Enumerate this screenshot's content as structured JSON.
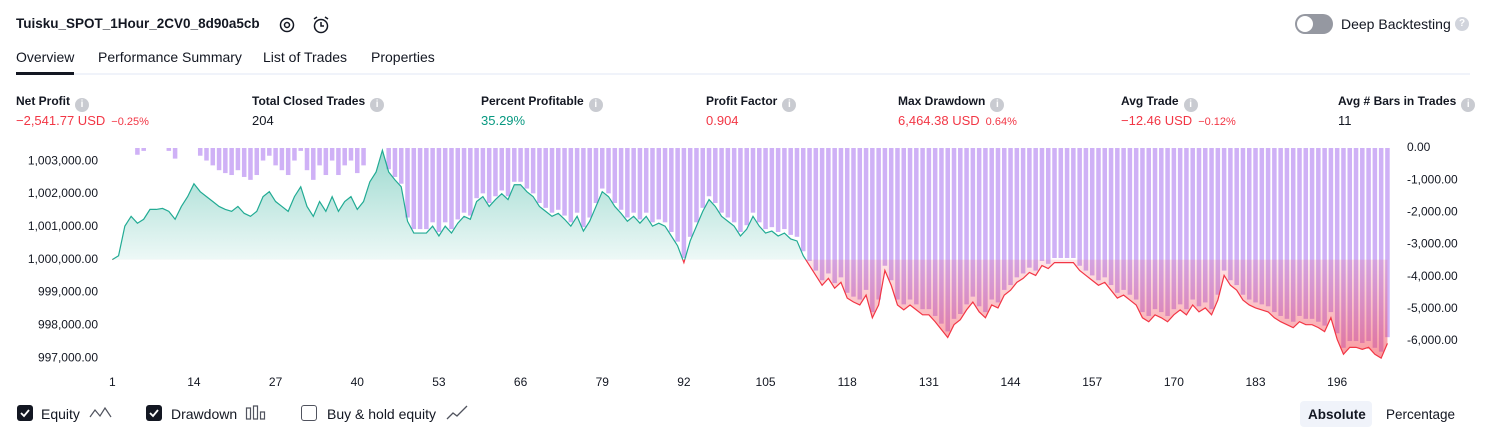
{
  "header": {
    "title": "Tuisku_SPOT_1Hour_2CV0_8d90a5cb",
    "toggle_label": "Deep Backtesting"
  },
  "tabs": [
    "Overview",
    "Performance Summary",
    "List of Trades",
    "Properties"
  ],
  "metrics": [
    {
      "label": "Net Profit",
      "value": "−2,541.77 USD",
      "percent": "−0.25%",
      "color": "#f23645"
    },
    {
      "label": "Total Closed Trades",
      "value": "204",
      "color": "#131722"
    },
    {
      "label": "Percent Profitable",
      "value": "35.29%",
      "color": "#089981"
    },
    {
      "label": "Profit Factor",
      "value": "0.904",
      "color": "#f23645"
    },
    {
      "label": "Max Drawdown",
      "value": "6,464.38 USD",
      "percent": "0.64%",
      "color": "#f23645"
    },
    {
      "label": "Avg Trade",
      "value": "−12.46 USD",
      "percent": "−0.12%",
      "color": "#f23645"
    },
    {
      "label": "Avg # Bars in Trades",
      "value": "11",
      "color": "#131722"
    }
  ],
  "chart_data": {
    "type": "equity",
    "x": [
      1,
      2,
      3,
      4,
      5,
      6,
      7,
      8,
      9,
      10,
      11,
      12,
      13,
      14,
      15,
      16,
      17,
      18,
      19,
      20,
      21,
      22,
      23,
      24,
      25,
      26,
      27,
      28,
      29,
      30,
      31,
      32,
      33,
      34,
      35,
      36,
      37,
      38,
      39,
      40,
      41,
      42,
      43,
      44,
      45,
      46,
      47,
      48,
      49,
      50,
      51,
      52,
      53,
      54,
      55,
      56,
      57,
      58,
      59,
      60,
      61,
      62,
      63,
      64,
      65,
      66,
      67,
      68,
      69,
      70,
      71,
      72,
      73,
      74,
      75,
      76,
      77,
      78,
      79,
      80,
      81,
      82,
      83,
      84,
      85,
      86,
      87,
      88,
      89,
      90,
      91,
      92,
      93,
      94,
      95,
      96,
      97,
      98,
      99,
      100,
      101,
      102,
      103,
      104,
      105,
      106,
      107,
      108,
      109,
      110,
      111,
      112,
      113,
      114,
      115,
      116,
      117,
      118,
      119,
      120,
      121,
      122,
      123,
      124,
      125,
      126,
      127,
      128,
      129,
      130,
      131,
      132,
      133,
      134,
      135,
      136,
      137,
      138,
      139,
      140,
      141,
      142,
      143,
      144,
      145,
      146,
      147,
      148,
      149,
      150,
      151,
      152,
      153,
      154,
      155,
      156,
      157,
      158,
      159,
      160,
      161,
      162,
      163,
      164,
      165,
      166,
      167,
      168,
      169,
      170,
      171,
      172,
      173,
      174,
      175,
      176,
      177,
      178,
      179,
      180,
      181,
      182,
      183,
      184,
      185,
      186,
      187,
      188,
      189,
      190,
      191,
      192,
      193,
      194,
      195,
      196,
      197,
      198,
      199,
      200,
      201,
      202,
      203,
      204
    ],
    "series": [
      {
        "name": "Equity",
        "color": "#22ab94",
        "negative_color": "#f23645",
        "values": [
          1000000,
          1000120,
          1001020,
          1001320,
          1001110,
          1001230,
          1001530,
          1001530,
          1001560,
          1001470,
          1001230,
          1001620,
          1001920,
          1002310,
          1002070,
          1001920,
          1001770,
          1001620,
          1001530,
          1001470,
          1001620,
          1001410,
          1001320,
          1001470,
          1001920,
          1002070,
          1001770,
          1001620,
          1001470,
          1001920,
          1002220,
          1001620,
          1001320,
          1001770,
          1001470,
          1001920,
          1001470,
          1001770,
          1001920,
          1001530,
          1001770,
          1002370,
          1002670,
          1003330,
          1002670,
          1002430,
          1002220,
          1001170,
          1000810,
          1000810,
          1000810,
          1001020,
          1000720,
          1001020,
          1000810,
          1001110,
          1001320,
          1001230,
          1001770,
          1001920,
          1001620,
          1001830,
          1002010,
          1001830,
          1002280,
          1002280,
          1002070,
          1001920,
          1001620,
          1001470,
          1001320,
          1001410,
          1001230,
          1001020,
          1001320,
          1000870,
          1001170,
          1001620,
          1002070,
          1001920,
          1001620,
          1001410,
          1001170,
          1001320,
          1001110,
          1001320,
          1001020,
          1001110,
          1001020,
          1000720,
          1000420,
          999910,
          1000570,
          1001020,
          1001470,
          1001830,
          1001620,
          1001320,
          1001170,
          1001020,
          1000720,
          1000930,
          1001320,
          1001020,
          1000810,
          1000870,
          1000720,
          1000810,
          1000630,
          1000570,
          1000120,
          999820,
          999520,
          999220,
          999430,
          999130,
          999310,
          998830,
          998710,
          998620,
          998920,
          998230,
          998620,
          999670,
          999220,
          998620,
          998470,
          998620,
          998470,
          998320,
          998320,
          998110,
          997870,
          997630,
          998020,
          998170,
          998470,
          998710,
          998410,
          998230,
          998620,
          998530,
          998920,
          999070,
          999310,
          999430,
          999610,
          999520,
          999820,
          999730,
          999910,
          999910,
          999910,
          999910,
          999670,
          999520,
          999370,
          999220,
          999310,
          999070,
          998830,
          998920,
          998770,
          998620,
          998230,
          998110,
          998320,
          998230,
          998110,
          998320,
          998470,
          998320,
          998620,
          998410,
          998530,
          998320,
          998770,
          999520,
          999220,
          999070,
          998770,
          998620,
          998530,
          998470,
          998410,
          998230,
          998110,
          998020,
          997930,
          998110,
          998020,
          998020,
          997930,
          997810,
          998230,
          997570,
          997120,
          997330,
          997330,
          997270,
          997330,
          997120,
          997000,
          997450
        ]
      },
      {
        "name": "Drawdown",
        "color": "#cfb1f6",
        "axis": "y2",
        "values": [
          0,
          0,
          0,
          0,
          -210,
          -90,
          0,
          0,
          0,
          -90,
          -330,
          0,
          0,
          0,
          -240,
          -390,
          -540,
          -690,
          -780,
          -840,
          -690,
          -900,
          -990,
          -840,
          -390,
          -240,
          -540,
          -690,
          -840,
          -390,
          -90,
          -690,
          -990,
          -540,
          -840,
          -390,
          -840,
          -540,
          -390,
          -780,
          -540,
          0,
          0,
          0,
          -660,
          -900,
          -1110,
          -2160,
          -2520,
          -2520,
          -2520,
          -2310,
          -2610,
          -2310,
          -2520,
          -2220,
          -2010,
          -2100,
          -1560,
          -1410,
          -1710,
          -1500,
          -1320,
          -1500,
          -1050,
          -1050,
          -1260,
          -1410,
          -1710,
          -1860,
          -2010,
          -1920,
          -2100,
          -2310,
          -2010,
          -2460,
          -2160,
          -1710,
          -1260,
          -1410,
          -1710,
          -1920,
          -2160,
          -2010,
          -2220,
          -2010,
          -2310,
          -2220,
          -2310,
          -2610,
          -2910,
          -3420,
          -2760,
          -2310,
          -1860,
          -1500,
          -1710,
          -2010,
          -2160,
          -2310,
          -2610,
          -2400,
          -2010,
          -2310,
          -2520,
          -2460,
          -2610,
          -2520,
          -2700,
          -2760,
          -3210,
          -3510,
          -3810,
          -4110,
          -3900,
          -4200,
          -4020,
          -4500,
          -4620,
          -4710,
          -4410,
          -5100,
          -4710,
          -3660,
          -4110,
          -4710,
          -4860,
          -4710,
          -4860,
          -5010,
          -5010,
          -5220,
          -5460,
          -5700,
          -5310,
          -5160,
          -4860,
          -4620,
          -4920,
          -5100,
          -4710,
          -4800,
          -4410,
          -4260,
          -4020,
          -3900,
          -3720,
          -3810,
          -3510,
          -3600,
          -3420,
          -3420,
          -3420,
          -3420,
          -3660,
          -3810,
          -3960,
          -4110,
          -4020,
          -4260,
          -4500,
          -4410,
          -4560,
          -4710,
          -5100,
          -5220,
          -5010,
          -5100,
          -5220,
          -5010,
          -4860,
          -5010,
          -4710,
          -4920,
          -4800,
          -5010,
          -4560,
          -3810,
          -4110,
          -4260,
          -4560,
          -4710,
          -4800,
          -4860,
          -4920,
          -5100,
          -5220,
          -5310,
          -5400,
          -5220,
          -5310,
          -5310,
          -5400,
          -5520,
          -5100,
          -5760,
          -6210,
          -6000,
          -6000,
          -6060,
          -6000,
          -6210,
          -6330,
          -5880
        ]
      }
    ],
    "xlim": [
      0,
      206
    ],
    "xticks": [
      1,
      14,
      27,
      40,
      53,
      66,
      79,
      92,
      105,
      118,
      131,
      144,
      157,
      170,
      183,
      196
    ],
    "ylim": [
      996640,
      1003400
    ],
    "yticks": [
      {
        "value": 1003000,
        "label": "1,003,000.00"
      },
      {
        "value": 1002000,
        "label": "1,002,000.00"
      },
      {
        "value": 1001000,
        "label": "1,001,000.00"
      },
      {
        "value": 1000000,
        "label": "1,000,000.00"
      },
      {
        "value": 999000,
        "label": "999,000.00"
      },
      {
        "value": 998000,
        "label": "998,000.00"
      },
      {
        "value": 997000,
        "label": "997,000.00"
      }
    ],
    "y2lim": [
      -6900,
      0
    ],
    "y2ticks": [
      {
        "value": 0,
        "label": "0.00"
      },
      {
        "value": -1000,
        "label": "-1,000.00"
      },
      {
        "value": -2000,
        "label": "-2,000.00"
      },
      {
        "value": -3000,
        "label": "-3,000.00"
      },
      {
        "value": -4000,
        "label": "-4,000.00"
      },
      {
        "value": -5000,
        "label": "-5,000.00"
      },
      {
        "value": -6000,
        "label": "-6,000.00"
      }
    ]
  },
  "controls": {
    "buy_hold": "Buy & hold equity",
    "absolute": "Absolute",
    "percentage": "Percentage"
  }
}
